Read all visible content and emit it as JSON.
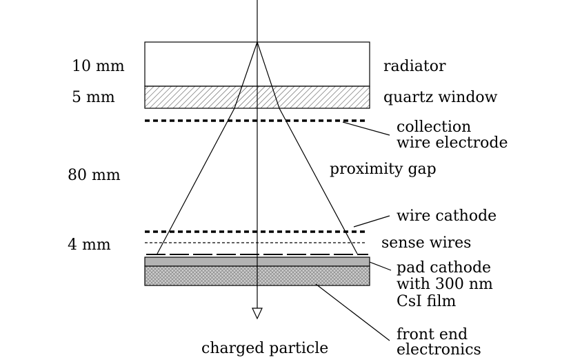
{
  "dimensions": {
    "radiator": "10 mm",
    "quartz_window": "5 mm",
    "proximity_gap": "80 mm",
    "wire_chamber": "4 mm"
  },
  "labels": {
    "radiator": "radiator",
    "quartz_window": "quartz window",
    "collection_line1": "collection",
    "collection_line2": "wire electrode",
    "proximity_gap": "proximity gap",
    "wire_cathode": "wire cathode",
    "sense_wires": "sense wires",
    "pad_line1": "pad cathode",
    "pad_line2": "with 300 nm",
    "pad_line3": "CsI film",
    "fee_line1": "front end",
    "fee_line2": "electronics",
    "charged_particle": "charged particle"
  }
}
